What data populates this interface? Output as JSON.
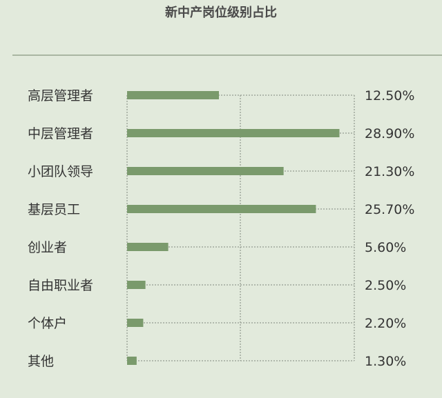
{
  "chart_data": {
    "type": "bar",
    "orientation": "horizontal",
    "title": "新中产岗位级别占比",
    "categories": [
      "高层管理者",
      "中层管理者",
      "小团队领导",
      "基层员工",
      "创业者",
      "自由职业者",
      "个体户",
      "其他"
    ],
    "values": [
      12.5,
      28.9,
      21.3,
      25.7,
      5.6,
      2.5,
      2.2,
      1.3
    ],
    "value_labels": [
      "12.50%",
      "28.90%",
      "21.30%",
      "25.70%",
      "5.60%",
      "2.50%",
      "2.20%",
      "1.30%"
    ],
    "unit": "%",
    "grid": true,
    "colors": {
      "bar": "#7a9a6c",
      "background": "#e2eadc",
      "grid": "#a0a79c"
    }
  }
}
